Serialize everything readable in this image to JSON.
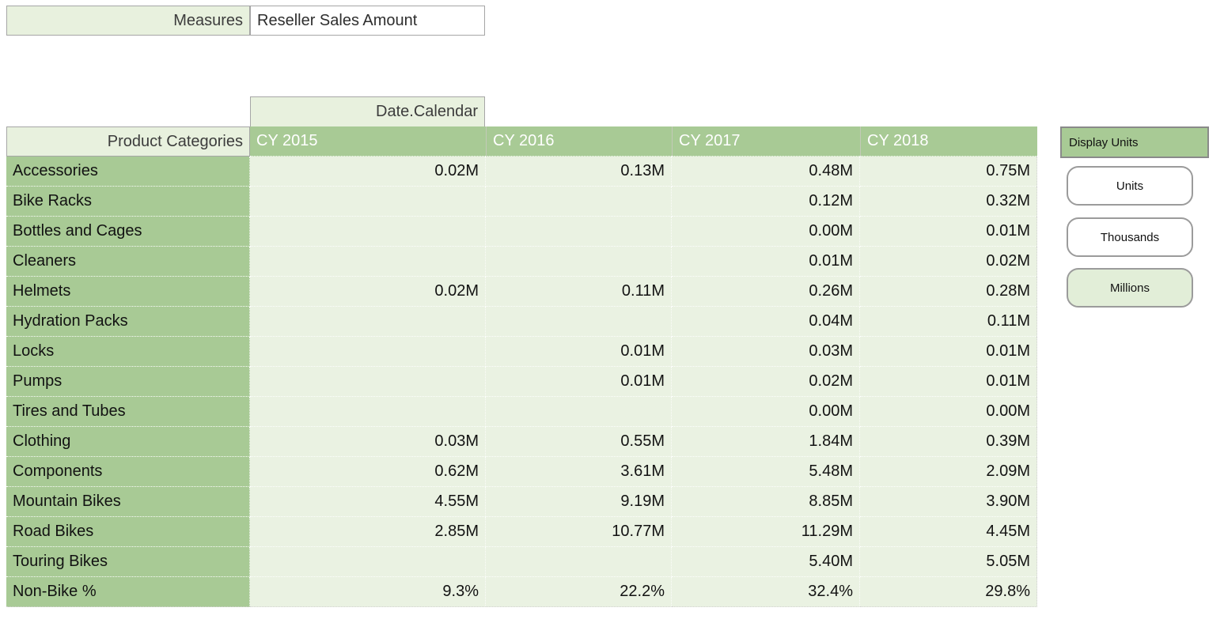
{
  "measures": {
    "label": "Measures",
    "value": "Reseller Sales Amount"
  },
  "pivot": {
    "dimension_label": "Date.Calendar",
    "row_header": "Product Categories",
    "columns": [
      "CY 2015",
      "CY 2016",
      "CY 2017",
      "CY 2018"
    ],
    "rows": [
      {
        "label": "Accessories",
        "values": [
          "0.02M",
          "0.13M",
          "0.48M",
          "0.75M"
        ]
      },
      {
        "label": "Bike Racks",
        "values": [
          "",
          "",
          "0.12M",
          "0.32M"
        ]
      },
      {
        "label": "Bottles and Cages",
        "values": [
          "",
          "",
          "0.00M",
          "0.01M"
        ]
      },
      {
        "label": "Cleaners",
        "values": [
          "",
          "",
          "0.01M",
          "0.02M"
        ]
      },
      {
        "label": "Helmets",
        "values": [
          "0.02M",
          "0.11M",
          "0.26M",
          "0.28M"
        ]
      },
      {
        "label": "Hydration Packs",
        "values": [
          "",
          "",
          "0.04M",
          "0.11M"
        ]
      },
      {
        "label": "Locks",
        "values": [
          "",
          "0.01M",
          "0.03M",
          "0.01M"
        ]
      },
      {
        "label": "Pumps",
        "values": [
          "",
          "0.01M",
          "0.02M",
          "0.01M"
        ]
      },
      {
        "label": "Tires and Tubes",
        "values": [
          "",
          "",
          "0.00M",
          "0.00M"
        ]
      },
      {
        "label": "Clothing",
        "values": [
          "0.03M",
          "0.55M",
          "1.84M",
          "0.39M"
        ]
      },
      {
        "label": "Components",
        "values": [
          "0.62M",
          "3.61M",
          "5.48M",
          "2.09M"
        ]
      },
      {
        "label": "Mountain Bikes",
        "values": [
          "4.55M",
          "9.19M",
          "8.85M",
          "3.90M"
        ]
      },
      {
        "label": "Road Bikes",
        "values": [
          "2.85M",
          "10.77M",
          "11.29M",
          "4.45M"
        ]
      },
      {
        "label": "Touring Bikes",
        "values": [
          "",
          "",
          "5.40M",
          "5.05M"
        ]
      },
      {
        "label": "Non-Bike %",
        "values": [
          "9.3%",
          "22.2%",
          "32.4%",
          "29.8%"
        ]
      }
    ]
  },
  "display_units": {
    "header": "Display Units",
    "buttons": [
      {
        "label": "Units",
        "selected": false
      },
      {
        "label": "Thousands",
        "selected": false
      },
      {
        "label": "Millions",
        "selected": true
      }
    ]
  },
  "colors": {
    "header_green": "#a8ca95",
    "data_cell": "#eaf2e2",
    "label_cell": "#e8f1de",
    "selected_button": "#e2eed8",
    "border_gray": "#a6a6a6",
    "header_text": "#ffffff"
  }
}
